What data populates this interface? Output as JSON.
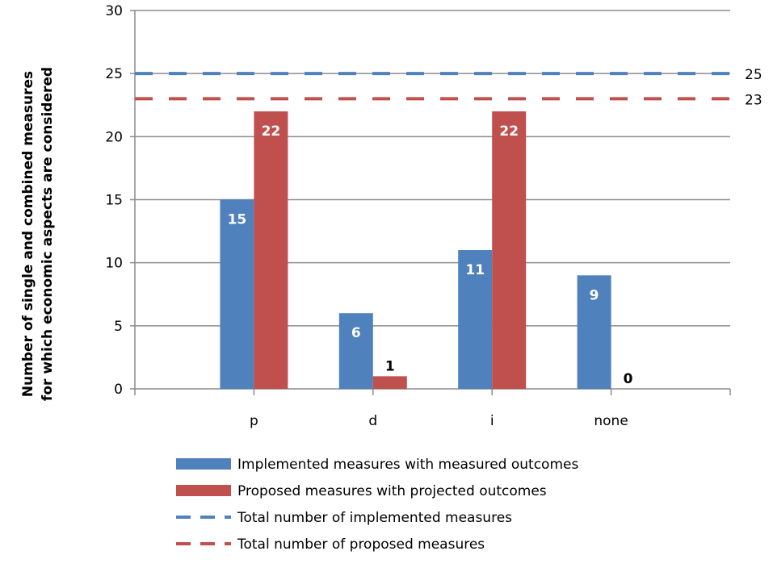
{
  "chart_data": {
    "type": "bar",
    "ylabel_lines": [
      "Number of single and combined measures",
      "for which economic aspects are considered"
    ],
    "categories": [
      "p",
      "d",
      "i",
      "none"
    ],
    "ylim": [
      0,
      30
    ],
    "yticks": [
      0,
      5,
      10,
      15,
      20,
      25,
      30
    ],
    "grid": true,
    "legend_position": "bottom",
    "series": [
      {
        "name": "Implemented measures with measured outcomes",
        "values": [
          15,
          6,
          11,
          9
        ],
        "color": "#4f81bd"
      },
      {
        "name": "Proposed measures with projected outcomes",
        "values": [
          22,
          1,
          22,
          0
        ],
        "color": "#c0504d"
      }
    ],
    "reference_lines": [
      {
        "name": "Total number of implemented measures",
        "value": 25,
        "label": "25",
        "color": "#4f81bd"
      },
      {
        "name": "Total number of proposed measures",
        "value": 23,
        "label": "23",
        "color": "#c0504d"
      }
    ]
  }
}
